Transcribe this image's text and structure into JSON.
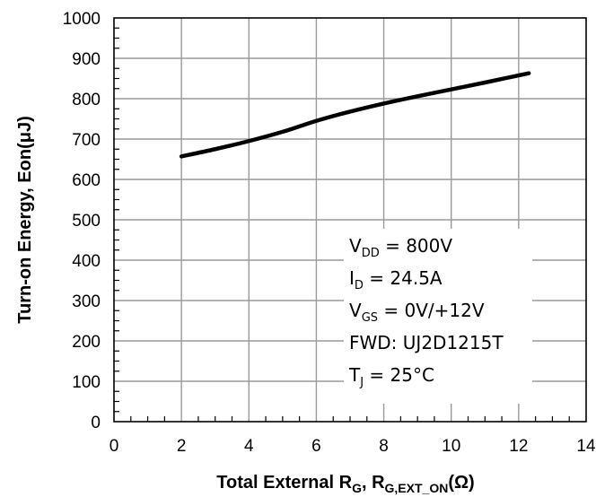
{
  "chart_data": {
    "type": "line",
    "series": [
      {
        "x": [
          2,
          3,
          4,
          5,
          6,
          7,
          8,
          9,
          10,
          11,
          12.3
        ],
        "y": [
          657,
          675,
          695,
          718,
          745,
          768,
          788,
          806,
          823,
          840,
          863
        ]
      }
    ],
    "xlim": [
      0,
      14
    ],
    "ylim": [
      0,
      1000
    ],
    "xticks": [
      "0",
      "2",
      "4",
      "6",
      "8",
      "10",
      "12",
      "14"
    ],
    "yticks": [
      "0",
      "100",
      "200",
      "300",
      "400",
      "500",
      "600",
      "700",
      "800",
      "900",
      "1000"
    ],
    "xlabel": {
      "prefix": "Total External R",
      "sub1": "G",
      "middle": ", R",
      "sub2": "G,EXT_ON",
      "unit": "(Ω)"
    },
    "ylabel": "Turn-on Energy, Eon(μJ)",
    "grid": true,
    "line_color": "#000000",
    "grid_color": "#9a9a9a",
    "annotations": {
      "vdd": {
        "base": "V",
        "sub": "DD",
        "rest": " = 800V"
      },
      "id": {
        "base": "I",
        "sub": "D",
        "rest": " = 24.5A"
      },
      "vgs": {
        "base": "V",
        "sub": "GS",
        "rest": " = 0V/+12V"
      },
      "fwd": {
        "text": "FWD: UJ2D1215T"
      },
      "tj": {
        "base": "T",
        "sub": "J",
        "rest": " = 25°C"
      }
    }
  }
}
